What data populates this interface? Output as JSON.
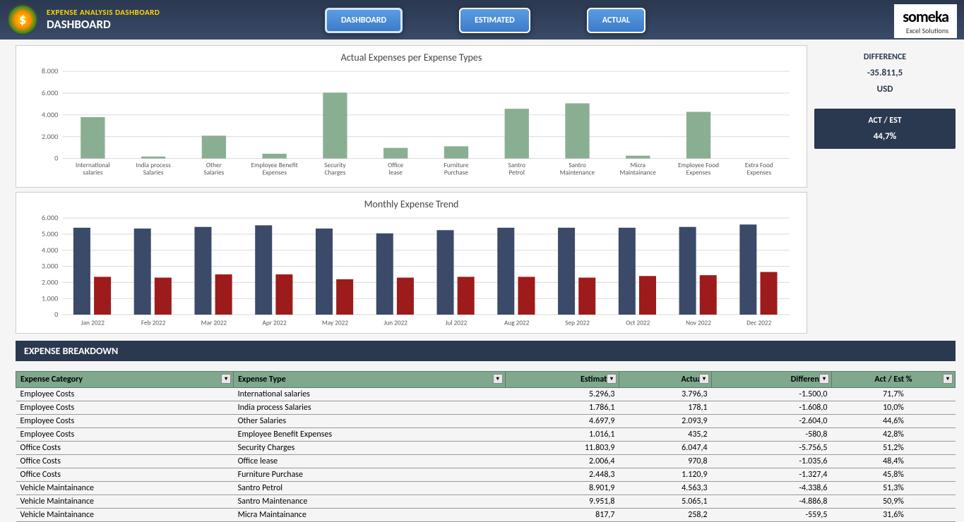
{
  "header": {
    "subtitle": "EXPENSE ANALYSIS DASHBOARD",
    "title": "DASHBOARD",
    "logo_symbol": "$",
    "brand_name": "someka",
    "brand_sub": "Excel Solutions"
  },
  "nav": {
    "dashboard": "DASHBOARD",
    "estimated": "ESTIMATED",
    "actual": "ACTUAL"
  },
  "kpi": {
    "diff_label": "DIFFERENCE",
    "diff_value": "-35.811,5",
    "diff_unit": "USD",
    "ratio_label": "ACT / EST",
    "ratio_value": "44,7%"
  },
  "chart1": {
    "title": "Actual Expenses per Expense Types",
    "type": "bar",
    "bar_color": "#8aae92",
    "grid_color": "#d9d9d9",
    "ylim": [
      0,
      8000
    ],
    "ytick_step": 2000,
    "yticks": [
      "0",
      "2.000",
      "4.000",
      "6.000",
      "8.000"
    ],
    "categories": [
      "International salaries",
      "India process Salaries",
      "Other Salaries",
      "Employee Benefit Expenses",
      "Security Charges",
      "Office lease",
      "Furniture Purchase",
      "Santro Petrol",
      "Santro Maintenance",
      "Micra Maintainance",
      "Employee Food Expenses",
      "Extra Food Expenses"
    ],
    "values": [
      3796,
      178,
      2094,
      435,
      6047,
      971,
      1121,
      4563,
      5065,
      258,
      4283,
      0
    ]
  },
  "chart2": {
    "title": "Monthly Expense Trend",
    "type": "grouped-bar",
    "colors": [
      "#3a4a68",
      "#9e1b1b"
    ],
    "grid_color": "#d9d9d9",
    "ylim": [
      0,
      6000
    ],
    "ytick_step": 1000,
    "yticks": [
      "0",
      "1.000",
      "2.000",
      "3.000",
      "4.000",
      "5.000",
      "6.000"
    ],
    "categories": [
      "Jan 2022",
      "Feb 2022",
      "Mar 2022",
      "Apr 2022",
      "May 2022",
      "Jun 2022",
      "Jul 2022",
      "Aug 2022",
      "Sep 2022",
      "Oct 2022",
      "Nov 2022",
      "Dec 2022"
    ],
    "series1": [
      5400,
      5350,
      5450,
      5550,
      5350,
      5050,
      5250,
      5400,
      5400,
      5400,
      5450,
      5600
    ],
    "series2": [
      2350,
      2300,
      2500,
      2500,
      2200,
      2300,
      2350,
      2350,
      2300,
      2400,
      2450,
      2650
    ]
  },
  "breakdown": {
    "section_title": "EXPENSE BREAKDOWN",
    "columns": [
      "Expense Category",
      "Expense Type",
      "Estimates",
      "Actuals",
      "Difference",
      "Act / Est %"
    ],
    "rows": [
      [
        "Employee Costs",
        "International salaries",
        "5.296,3",
        "3.796,3",
        "-1.500,0",
        "71,7%"
      ],
      [
        "Employee Costs",
        "India process Salaries",
        "1.786,1",
        "178,1",
        "-1.608,0",
        "10,0%"
      ],
      [
        "Employee Costs",
        "Other Salaries",
        "4.697,9",
        "2.093,9",
        "-2.604,0",
        "44,6%"
      ],
      [
        "Employee Costs",
        "Employee Benefit Expenses",
        "1.016,1",
        "435,2",
        "-580,8",
        "42,8%"
      ],
      [
        "Office Costs",
        "Security Charges",
        "11.803,9",
        "6.047,4",
        "-5.756,5",
        "51,2%"
      ],
      [
        "Office Costs",
        "Office lease",
        "2.006,4",
        "970,8",
        "-1.035,6",
        "48,4%"
      ],
      [
        "Office Costs",
        "Furniture Purchase",
        "2.448,3",
        "1.120,9",
        "-1.327,4",
        "45,8%"
      ],
      [
        "Vehicle Maintainance",
        "Santro Petrol",
        "8.901,9",
        "4.563,3",
        "-4.338,6",
        "51,3%"
      ],
      [
        "Vehicle Maintainance",
        "Santro Maintenance",
        "9.951,8",
        "5.065,1",
        "-4.886,8",
        "50,9%"
      ],
      [
        "Vehicle Maintainance",
        "Micra Maintainance",
        "817,7",
        "258,2",
        "-559,5",
        "31,6%"
      ]
    ]
  }
}
